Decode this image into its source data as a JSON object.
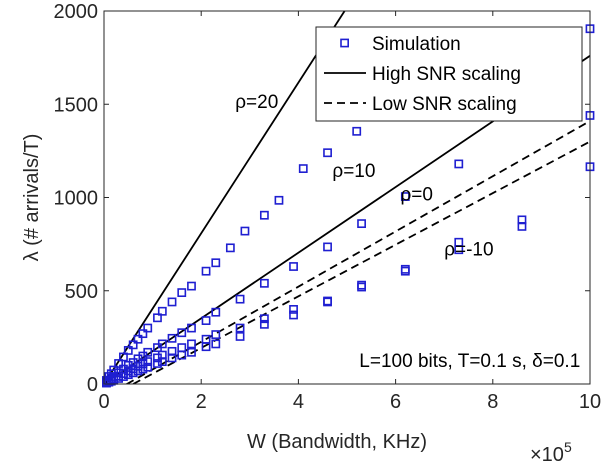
{
  "chart_data": {
    "type": "scatter",
    "xlabel": "W (Bandwidth, KHz)",
    "ylabel": "λ (# arrivals/T)",
    "x_exponent_label": "×10",
    "x_exponent_power": "5",
    "xlim": [
      0,
      1000000
    ],
    "ylim": [
      0,
      2000
    ],
    "xticks": [
      0,
      200000,
      400000,
      600000,
      800000,
      1000000
    ],
    "xtick_labels": [
      "0",
      "2",
      "4",
      "6",
      "8",
      "10"
    ],
    "yticks": [
      0,
      500,
      1000,
      1500,
      2000
    ],
    "ytick_labels": [
      "0",
      "500",
      "1000",
      "1500",
      "2000"
    ],
    "grid": false,
    "legend_position": "top-right",
    "legend": [
      {
        "label": "Simulation",
        "style": "marker"
      },
      {
        "label": "High SNR scaling",
        "style": "solid"
      },
      {
        "label": "Low SNR scaling",
        "style": "dashed"
      }
    ],
    "series": [
      {
        "name": "Simulation",
        "kind": "scatter",
        "color": "#1f1fd1",
        "points": [
          [
            5000,
            19
          ],
          [
            10000,
            40
          ],
          [
            15000,
            55
          ],
          [
            20000,
            75
          ],
          [
            30000,
            110
          ],
          [
            40000,
            145
          ],
          [
            50000,
            180
          ],
          [
            60000,
            210
          ],
          [
            70000,
            240
          ],
          [
            80000,
            270
          ],
          [
            90000,
            300
          ],
          [
            110000,
            355
          ],
          [
            120000,
            390
          ],
          [
            140000,
            440
          ],
          [
            160000,
            490
          ],
          [
            180000,
            525
          ],
          [
            210000,
            605
          ],
          [
            230000,
            650
          ],
          [
            260000,
            730
          ],
          [
            290000,
            820
          ],
          [
            330000,
            905
          ],
          [
            360000,
            985
          ],
          [
            410000,
            1155
          ],
          [
            460000,
            1240
          ],
          [
            520000,
            1355
          ],
          [
            590000,
            1490
          ],
          [
            1000000,
            1905
          ],
          [
            5000,
            10
          ],
          [
            10000,
            20
          ],
          [
            15000,
            30
          ],
          [
            20000,
            40
          ],
          [
            30000,
            60
          ],
          [
            40000,
            80
          ],
          [
            50000,
            100
          ],
          [
            60000,
            115
          ],
          [
            70000,
            135
          ],
          [
            80000,
            150
          ],
          [
            90000,
            170
          ],
          [
            110000,
            195
          ],
          [
            120000,
            215
          ],
          [
            140000,
            245
          ],
          [
            160000,
            275
          ],
          [
            180000,
            300
          ],
          [
            210000,
            340
          ],
          [
            230000,
            385
          ],
          [
            280000,
            455
          ],
          [
            330000,
            540
          ],
          [
            390000,
            630
          ],
          [
            460000,
            735
          ],
          [
            530000,
            860
          ],
          [
            620000,
            1005
          ],
          [
            730000,
            1180
          ],
          [
            1000000,
            1440
          ],
          [
            5000,
            7
          ],
          [
            10000,
            14
          ],
          [
            15000,
            21
          ],
          [
            20000,
            28
          ],
          [
            30000,
            42
          ],
          [
            40000,
            56
          ],
          [
            50000,
            70
          ],
          [
            60000,
            82
          ],
          [
            70000,
            95
          ],
          [
            80000,
            108
          ],
          [
            90000,
            120
          ],
          [
            110000,
            140
          ],
          [
            120000,
            155
          ],
          [
            140000,
            175
          ],
          [
            160000,
            195
          ],
          [
            180000,
            215
          ],
          [
            210000,
            240
          ],
          [
            230000,
            265
          ],
          [
            280000,
            300
          ],
          [
            330000,
            350
          ],
          [
            390000,
            400
          ],
          [
            460000,
            445
          ],
          [
            530000,
            530
          ],
          [
            620000,
            605
          ],
          [
            730000,
            760
          ],
          [
            860000,
            880
          ],
          [
            1000000,
            1165
          ],
          [
            5000,
            5
          ],
          [
            10000,
            10
          ],
          [
            15000,
            15
          ],
          [
            20000,
            20
          ],
          [
            30000,
            30
          ],
          [
            40000,
            40
          ],
          [
            50000,
            50
          ],
          [
            60000,
            60
          ],
          [
            70000,
            70
          ],
          [
            80000,
            80
          ],
          [
            90000,
            90
          ],
          [
            110000,
            110
          ],
          [
            120000,
            120
          ],
          [
            140000,
            140
          ],
          [
            160000,
            155
          ],
          [
            180000,
            170
          ],
          [
            210000,
            200
          ],
          [
            230000,
            215
          ],
          [
            280000,
            255
          ],
          [
            330000,
            320
          ],
          [
            390000,
            370
          ],
          [
            460000,
            440
          ],
          [
            530000,
            520
          ],
          [
            620000,
            615
          ],
          [
            730000,
            720
          ],
          [
            860000,
            845
          ]
        ]
      },
      {
        "name": "High SNR scaling ρ=20",
        "kind": "line",
        "style": "solid",
        "points": [
          [
            0,
            0
          ],
          [
            500000,
            2020
          ]
        ]
      },
      {
        "name": "High SNR scaling ρ=10",
        "kind": "line",
        "style": "solid",
        "points": [
          [
            0,
            0
          ],
          [
            1000000,
            1760
          ]
        ]
      },
      {
        "name": "Low SNR scaling ρ=0",
        "kind": "line",
        "style": "dashed",
        "points": [
          [
            0,
            -70
          ],
          [
            1000000,
            1410
          ]
        ]
      },
      {
        "name": "Low SNR scaling ρ=-10",
        "kind": "line",
        "style": "dashed",
        "points": [
          [
            60000,
            0
          ],
          [
            1000000,
            1300
          ]
        ]
      }
    ],
    "annotations": [
      {
        "text": "ρ=20",
        "x": 270000,
        "y": 1480
      },
      {
        "text": "ρ=10",
        "x": 470000,
        "y": 1110
      },
      {
        "text": "ρ=0",
        "x": 610000,
        "y": 985
      },
      {
        "text": "ρ=-10",
        "x": 700000,
        "y": 690
      },
      {
        "text": "L=100 bits, T=0.1 s, δ=0.1",
        "x": 980000,
        "y": 90
      }
    ],
    "colors": {
      "marker": "#1f1fd1",
      "line": "#000000",
      "axis": "#262626"
    }
  }
}
